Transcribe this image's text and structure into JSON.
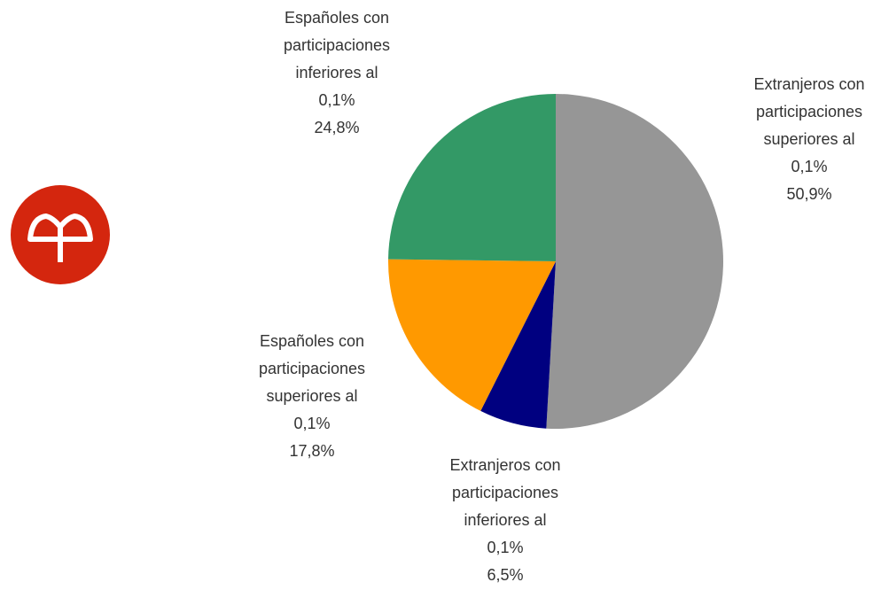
{
  "chart_data": {
    "type": "pie",
    "categories": [
      "Extranjeros con participaciones superiores al 0,1%",
      "Extranjeros con participaciones inferiores al 0,1%",
      "Españoles con participaciones superiores al 0,1%",
      "Españoles con participaciones inferiores al 0,1%"
    ],
    "values": [
      50.9,
      6.5,
      17.8,
      24.8
    ],
    "value_labels": [
      "50,9%",
      "6,5%",
      "17,8%",
      "24,8%"
    ],
    "colors": [
      "#969696",
      "#000080",
      "#ff9900",
      "#339966"
    ]
  }
}
